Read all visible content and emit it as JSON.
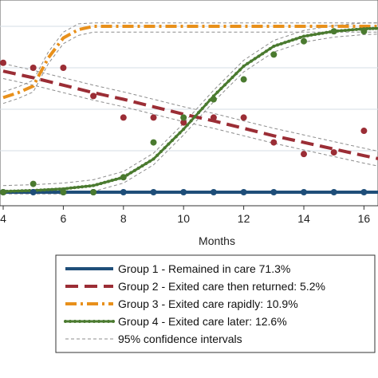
{
  "chart_data": {
    "type": "line",
    "title": "",
    "xlabel": "Months",
    "ylabel": "",
    "xlim": [
      4,
      16.8
    ],
    "ylim": [
      0,
      1
    ],
    "x_ticks": [
      4,
      6,
      8,
      10,
      12,
      14,
      16
    ],
    "x_tick_labels": [
      "4",
      "6",
      "8",
      "10",
      "12",
      "14",
      "16"
    ],
    "grid": "horizontal",
    "legend_position": "bottom-right",
    "series": [
      {
        "name": "Group 1 - Remained in care 71.3%",
        "color": "#1f4e79",
        "style": "solid",
        "fitted": {
          "x": [
            4,
            5,
            6,
            7,
            8,
            9,
            10,
            11,
            12,
            13,
            14,
            15,
            16,
            16.8
          ],
          "y": [
            0.0,
            0.0,
            0.0,
            0.0,
            0.0,
            0.0,
            0.0,
            0.0,
            0.0,
            0.0,
            0.0,
            0.0,
            0.0,
            0.0
          ]
        },
        "observed": {
          "x": [
            4,
            5,
            6,
            7,
            8,
            9,
            10,
            11,
            12,
            13,
            14,
            15,
            16
          ],
          "y": [
            0.0,
            0.0,
            0.0,
            0.0,
            0.0,
            0.0,
            0.0,
            0.0,
            0.0,
            0.0,
            0.0,
            0.0,
            0.0
          ]
        }
      },
      {
        "name": "Group 2 - Exited care then returned: 5.2%",
        "color": "#9b2d35",
        "style": "long-dash",
        "fitted": {
          "x": [
            4,
            5,
            6,
            7,
            8,
            9,
            10,
            11,
            12,
            13,
            14,
            15,
            16,
            16.8
          ],
          "y": [
            0.73,
            0.69,
            0.645,
            0.6,
            0.56,
            0.515,
            0.47,
            0.43,
            0.385,
            0.34,
            0.3,
            0.26,
            0.22,
            0.19
          ]
        },
        "observed": {
          "x": [
            4,
            5,
            6,
            7,
            8,
            9,
            10,
            11,
            12,
            13,
            14,
            15,
            16
          ],
          "y": [
            0.78,
            0.75,
            0.75,
            0.58,
            0.45,
            0.45,
            0.42,
            0.45,
            0.45,
            0.3,
            0.23,
            0.24,
            0.37
          ]
        }
      },
      {
        "name": "Group 3 - Exited care rapidly: 10.9%",
        "color": "#e8901b",
        "style": "dash-dot",
        "fitted": {
          "x": [
            4,
            4.5,
            5,
            5.5,
            6,
            6.5,
            7,
            8,
            9,
            10,
            11,
            12,
            13,
            14,
            15,
            16,
            16.8
          ],
          "y": [
            0.57,
            0.6,
            0.64,
            0.81,
            0.93,
            0.98,
            1.0,
            1.0,
            1.0,
            1.0,
            1.0,
            1.0,
            1.0,
            1.0,
            1.0,
            1.0,
            1.0
          ]
        }
      },
      {
        "name": "Group 4 - Exited care later: 12.6%",
        "color": "#4a7a2f",
        "style": "dotted-line",
        "fitted": {
          "x": [
            4,
            5,
            6,
            7,
            8,
            9,
            10,
            11,
            12,
            13,
            14,
            15,
            16,
            16.8
          ],
          "y": [
            0.005,
            0.01,
            0.02,
            0.04,
            0.09,
            0.2,
            0.38,
            0.58,
            0.76,
            0.88,
            0.94,
            0.97,
            0.985,
            0.99
          ]
        },
        "observed": {
          "x": [
            4,
            5,
            6,
            7,
            8,
            9,
            10,
            11,
            12,
            13,
            14,
            15,
            16
          ],
          "y": [
            0.0,
            0.05,
            0.0,
            0.0,
            0.09,
            0.3,
            0.45,
            0.56,
            0.68,
            0.83,
            0.91,
            0.97,
            0.97
          ]
        }
      }
    ],
    "confidence_interval": {
      "name": "95% confidence intervals",
      "color": "#8c8c8c"
    }
  }
}
